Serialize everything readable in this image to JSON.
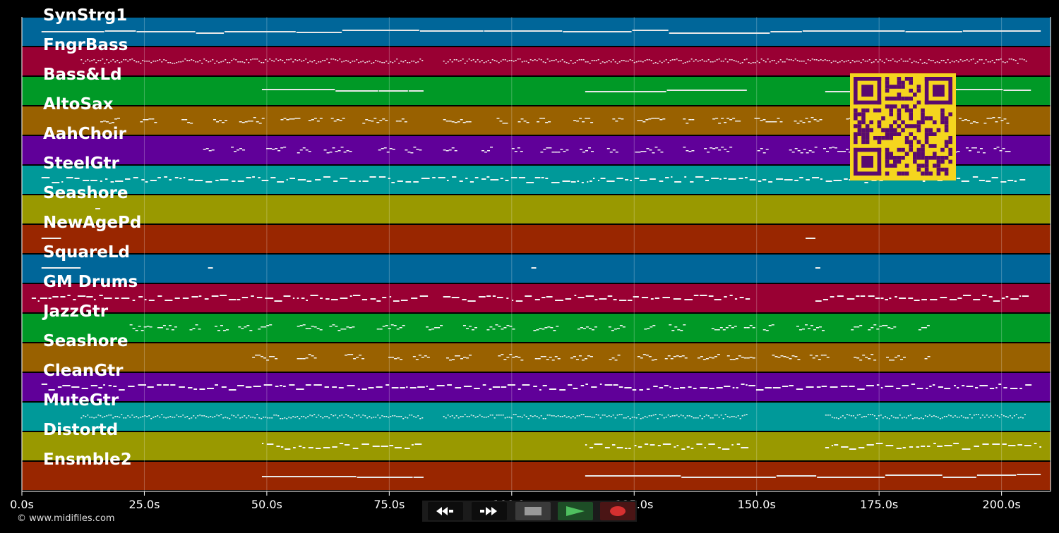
{
  "tracks": [
    {
      "name": "SynStrg1",
      "color": "#006699"
    },
    {
      "name": "FngrBass",
      "color": "#990033"
    },
    {
      "name": "Bass&Ld",
      "color": "#009926"
    },
    {
      "name": "AltoSax",
      "color": "#996100"
    },
    {
      "name": "AahChoir",
      "color": "#600099"
    },
    {
      "name": "SteelGtr",
      "color": "#009999"
    },
    {
      "name": "Seashore",
      "color": "#999900"
    },
    {
      "name": "NewAgePd",
      "color": "#992600"
    },
    {
      "name": "SquareLd",
      "color": "#006699"
    },
    {
      "name": "GM Drums",
      "color": "#990033"
    },
    {
      "name": "JazzGtr",
      "color": "#009926"
    },
    {
      "name": "Seashore",
      "color": "#996100"
    },
    {
      "name": "CleanGtr",
      "color": "#600099"
    },
    {
      "name": "MuteGtr",
      "color": "#009999"
    },
    {
      "name": "Distortd",
      "color": "#999900"
    },
    {
      "name": "Ensmble2",
      "color": "#992600"
    }
  ],
  "timeline": {
    "unit": "s",
    "range_seconds": [
      0,
      210
    ],
    "ticks": [
      "0.0s",
      "25.0s",
      "50.0s",
      "75.0s",
      "100.0s",
      "125.0s",
      "150.0s",
      "175.0s",
      "200.0s"
    ],
    "tick_values": [
      0,
      25,
      50,
      75,
      100,
      125,
      150,
      175,
      200
    ],
    "grid": true
  },
  "note_activity": [
    {
      "track": 0,
      "segments": [
        [
          4,
          208
        ]
      ],
      "style": "sustain"
    },
    {
      "track": 1,
      "segments": [
        [
          12,
          82
        ],
        [
          86,
          205
        ]
      ],
      "style": "dotted"
    },
    {
      "track": 2,
      "segments": [
        [
          49,
          82
        ],
        [
          115,
          148
        ],
        [
          164,
          206
        ]
      ],
      "style": "sustain"
    },
    {
      "track": 3,
      "segments": [
        [
          16,
          82
        ],
        [
          86,
          205
        ]
      ],
      "style": "phrases"
    },
    {
      "track": 4,
      "segments": [
        [
          37,
          82
        ],
        [
          86,
          205
        ]
      ],
      "style": "phrases"
    },
    {
      "track": 5,
      "segments": [
        [
          4,
          205
        ]
      ],
      "style": "dense"
    },
    {
      "track": 6,
      "segments": [
        [
          15,
          16
        ]
      ],
      "style": "sparse"
    },
    {
      "track": 7,
      "segments": [
        [
          4,
          8
        ],
        [
          160,
          162
        ]
      ],
      "style": "sparse"
    },
    {
      "track": 8,
      "segments": [
        [
          4,
          12
        ],
        [
          38,
          39
        ],
        [
          104,
          105
        ],
        [
          162,
          163
        ]
      ],
      "style": "sparse"
    },
    {
      "track": 9,
      "segments": [
        [
          2,
          82
        ],
        [
          86,
          148
        ],
        [
          162,
          205
        ]
      ],
      "style": "dense"
    },
    {
      "track": 10,
      "segments": [
        [
          22,
          185
        ]
      ],
      "style": "phrases"
    },
    {
      "track": 11,
      "segments": [
        [
          47,
          185
        ]
      ],
      "style": "phrases"
    },
    {
      "track": 12,
      "segments": [
        [
          4,
          205
        ]
      ],
      "style": "dense"
    },
    {
      "track": 13,
      "segments": [
        [
          12,
          82
        ],
        [
          86,
          148
        ],
        [
          164,
          205
        ]
      ],
      "style": "dotted"
    },
    {
      "track": 14,
      "segments": [
        [
          49,
          82
        ],
        [
          115,
          148
        ],
        [
          164,
          208
        ]
      ],
      "style": "dense"
    },
    {
      "track": 15,
      "segments": [
        [
          49,
          82
        ],
        [
          115,
          208
        ]
      ],
      "style": "sustain"
    }
  ],
  "transport": [
    {
      "name": "rewind-button",
      "icon": "rewind-icon"
    },
    {
      "name": "fast-forward-button",
      "icon": "fast-forward-icon"
    },
    {
      "name": "stop-button",
      "icon": "stop-icon"
    },
    {
      "name": "play-button",
      "icon": "play-icon"
    },
    {
      "name": "record-button",
      "icon": "record-icon"
    }
  ],
  "copyright": "© www.midifiles.com",
  "qr_code": {
    "color": "#f5d51e",
    "module_color": "#5a0a6e"
  }
}
